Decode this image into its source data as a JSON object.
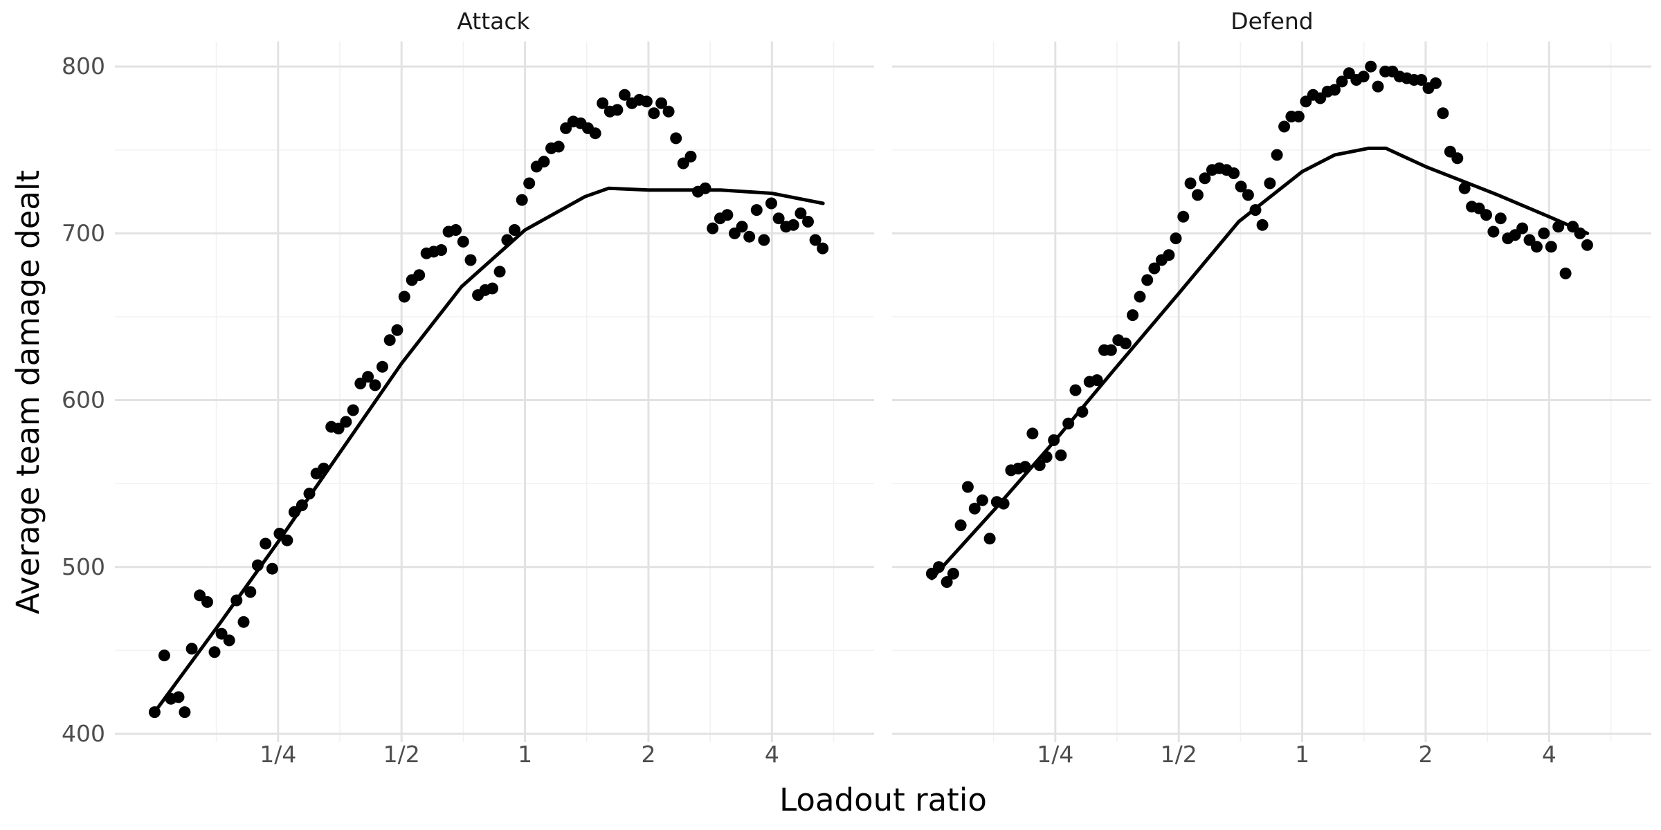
{
  "chart_data": {
    "type": "scatter",
    "xlabel": "Loadout ratio",
    "ylabel": "Average team damage dealt",
    "x_scale": "log2",
    "xlim": [
      0.1,
      7.1
    ],
    "ylim": [
      395,
      815
    ],
    "x_ticks": [
      {
        "value": 0.25,
        "label": "1/4"
      },
      {
        "value": 0.5,
        "label": "1/2"
      },
      {
        "value": 1,
        "label": "1"
      },
      {
        "value": 2,
        "label": "2"
      },
      {
        "value": 4,
        "label": "4"
      }
    ],
    "y_ticks": [
      {
        "value": 400,
        "label": "400"
      },
      {
        "value": 500,
        "label": "500"
      },
      {
        "value": 600,
        "label": "600"
      },
      {
        "value": 700,
        "label": "700"
      },
      {
        "value": 800,
        "label": "800"
      }
    ],
    "grid": true,
    "legend": "none",
    "panels": [
      {
        "title": "Attack",
        "points": [
          [
            0.125,
            413
          ],
          [
            0.132,
            447
          ],
          [
            0.137,
            421
          ],
          [
            0.143,
            422
          ],
          [
            0.148,
            413
          ],
          [
            0.154,
            451
          ],
          [
            0.161,
            483
          ],
          [
            0.168,
            479
          ],
          [
            0.175,
            449
          ],
          [
            0.182,
            460
          ],
          [
            0.19,
            456
          ],
          [
            0.198,
            480
          ],
          [
            0.206,
            467
          ],
          [
            0.214,
            485
          ],
          [
            0.223,
            501
          ],
          [
            0.233,
            514
          ],
          [
            0.242,
            499
          ],
          [
            0.252,
            520
          ],
          [
            0.263,
            516
          ],
          [
            0.274,
            533
          ],
          [
            0.286,
            537
          ],
          [
            0.298,
            544
          ],
          [
            0.31,
            556
          ],
          [
            0.323,
            559
          ],
          [
            0.337,
            584
          ],
          [
            0.351,
            583
          ],
          [
            0.366,
            587
          ],
          [
            0.381,
            594
          ],
          [
            0.397,
            610
          ],
          [
            0.414,
            614
          ],
          [
            0.431,
            609
          ],
          [
            0.449,
            620
          ],
          [
            0.468,
            636
          ],
          [
            0.488,
            642
          ],
          [
            0.508,
            662
          ],
          [
            0.53,
            672
          ],
          [
            0.552,
            675
          ],
          [
            0.575,
            688
          ],
          [
            0.599,
            689
          ],
          [
            0.625,
            690
          ],
          [
            0.651,
            701
          ],
          [
            0.678,
            702
          ],
          [
            0.707,
            695
          ],
          [
            0.737,
            684
          ],
          [
            0.768,
            663
          ],
          [
            0.8,
            666
          ],
          [
            0.833,
            667
          ],
          [
            0.868,
            677
          ],
          [
            0.905,
            696
          ],
          [
            0.943,
            702
          ],
          [
            0.983,
            720
          ],
          [
            1.024,
            730
          ],
          [
            1.067,
            740
          ],
          [
            1.112,
            743
          ],
          [
            1.159,
            751
          ],
          [
            1.208,
            752
          ],
          [
            1.258,
            763
          ],
          [
            1.311,
            767
          ],
          [
            1.367,
            766
          ],
          [
            1.424,
            763
          ],
          [
            1.484,
            760
          ],
          [
            1.546,
            778
          ],
          [
            1.611,
            773
          ],
          [
            1.679,
            774
          ],
          [
            1.75,
            783
          ],
          [
            1.823,
            778
          ],
          [
            1.9,
            780
          ],
          [
            1.98,
            779
          ],
          [
            2.063,
            772
          ],
          [
            2.15,
            778
          ],
          [
            2.24,
            773
          ],
          [
            2.334,
            757
          ],
          [
            2.432,
            742
          ],
          [
            2.535,
            746
          ],
          [
            2.641,
            725
          ],
          [
            2.752,
            727
          ],
          [
            2.868,
            703
          ],
          [
            2.989,
            709
          ],
          [
            3.114,
            711
          ],
          [
            3.245,
            700
          ],
          [
            3.382,
            704
          ],
          [
            3.524,
            698
          ],
          [
            3.672,
            714
          ],
          [
            3.826,
            696
          ],
          [
            3.987,
            718
          ],
          [
            4.155,
            709
          ],
          [
            4.33,
            704
          ],
          [
            4.512,
            705
          ],
          [
            4.701,
            712
          ],
          [
            4.899,
            707
          ],
          [
            5.105,
            696
          ],
          [
            5.32,
            691
          ]
        ],
        "fit": [
          [
            0.125,
            413
          ],
          [
            0.18,
            466
          ],
          [
            0.25,
            515
          ],
          [
            0.35,
            567
          ],
          [
            0.5,
            622
          ],
          [
            0.7,
            668
          ],
          [
            1.0,
            702
          ],
          [
            1.4,
            722
          ],
          [
            1.6,
            727
          ],
          [
            2.0,
            726
          ],
          [
            3.0,
            726
          ],
          [
            4.0,
            724
          ],
          [
            5.33,
            718
          ]
        ]
      },
      {
        "title": "Defend",
        "points": [
          [
            0.125,
            496
          ],
          [
            0.13,
            500
          ],
          [
            0.136,
            491
          ],
          [
            0.141,
            496
          ],
          [
            0.147,
            525
          ],
          [
            0.153,
            548
          ],
          [
            0.159,
            535
          ],
          [
            0.166,
            540
          ],
          [
            0.173,
            517
          ],
          [
            0.18,
            539
          ],
          [
            0.187,
            538
          ],
          [
            0.195,
            558
          ],
          [
            0.203,
            559
          ],
          [
            0.211,
            560
          ],
          [
            0.22,
            580
          ],
          [
            0.229,
            561
          ],
          [
            0.238,
            566
          ],
          [
            0.248,
            576
          ],
          [
            0.258,
            567
          ],
          [
            0.269,
            586
          ],
          [
            0.28,
            606
          ],
          [
            0.291,
            593
          ],
          [
            0.303,
            611
          ],
          [
            0.316,
            612
          ],
          [
            0.329,
            630
          ],
          [
            0.342,
            630
          ],
          [
            0.356,
            636
          ],
          [
            0.371,
            634
          ],
          [
            0.386,
            651
          ],
          [
            0.402,
            662
          ],
          [
            0.419,
            672
          ],
          [
            0.436,
            679
          ],
          [
            0.454,
            684
          ],
          [
            0.473,
            687
          ],
          [
            0.492,
            697
          ],
          [
            0.513,
            710
          ],
          [
            0.534,
            730
          ],
          [
            0.556,
            723
          ],
          [
            0.579,
            733
          ],
          [
            0.603,
            738
          ],
          [
            0.628,
            739
          ],
          [
            0.654,
            738
          ],
          [
            0.681,
            736
          ],
          [
            0.709,
            728
          ],
          [
            0.738,
            723
          ],
          [
            0.769,
            714
          ],
          [
            0.8,
            705
          ],
          [
            0.834,
            730
          ],
          [
            0.868,
            747
          ],
          [
            0.904,
            764
          ],
          [
            0.941,
            770
          ],
          [
            0.98,
            770
          ],
          [
            1.021,
            779
          ],
          [
            1.063,
            783
          ],
          [
            1.107,
            781
          ],
          [
            1.153,
            785
          ],
          [
            1.2,
            786
          ],
          [
            1.25,
            791
          ],
          [
            1.301,
            796
          ],
          [
            1.355,
            792
          ],
          [
            1.411,
            794
          ],
          [
            1.47,
            800
          ],
          [
            1.53,
            788
          ],
          [
            1.594,
            797
          ],
          [
            1.66,
            797
          ],
          [
            1.728,
            794
          ],
          [
            1.8,
            793
          ],
          [
            1.874,
            792
          ],
          [
            1.952,
            792
          ],
          [
            2.032,
            787
          ],
          [
            2.116,
            790
          ],
          [
            2.204,
            772
          ],
          [
            2.295,
            749
          ],
          [
            2.39,
            745
          ],
          [
            2.489,
            727
          ],
          [
            2.591,
            716
          ],
          [
            2.699,
            715
          ],
          [
            2.81,
            711
          ],
          [
            2.926,
            701
          ],
          [
            3.047,
            709
          ],
          [
            3.173,
            697
          ],
          [
            3.304,
            699
          ],
          [
            3.441,
            703
          ],
          [
            3.583,
            696
          ],
          [
            3.731,
            692
          ],
          [
            3.885,
            700
          ],
          [
            4.046,
            692
          ],
          [
            4.213,
            704
          ],
          [
            4.387,
            676
          ],
          [
            4.569,
            704
          ],
          [
            4.758,
            700
          ],
          [
            4.954,
            693
          ]
        ],
        "fit": [
          [
            0.125,
            493
          ],
          [
            0.18,
            536
          ],
          [
            0.25,
            576
          ],
          [
            0.35,
            619
          ],
          [
            0.5,
            664
          ],
          [
            0.7,
            707
          ],
          [
            1.0,
            737
          ],
          [
            1.2,
            747
          ],
          [
            1.45,
            751
          ],
          [
            1.6,
            751
          ],
          [
            2.0,
            740
          ],
          [
            3.0,
            723
          ],
          [
            4.0,
            710
          ],
          [
            4.96,
            700
          ]
        ]
      }
    ]
  }
}
